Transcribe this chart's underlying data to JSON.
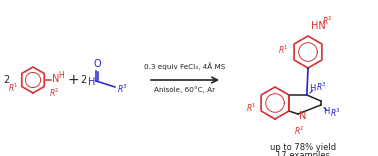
{
  "bg_color": "#ffffff",
  "red": "#d63030",
  "blue": "#2222cc",
  "black": "#222222",
  "condition_line1": "0.3 equiv FeCl₃, 4Å MS",
  "condition_line2": "Anisole, 60°C, Ar",
  "yield_text": "up to 78% yield",
  "examples_text": "17 examples",
  "fig_width": 3.78,
  "fig_height": 1.56,
  "dpi": 100
}
